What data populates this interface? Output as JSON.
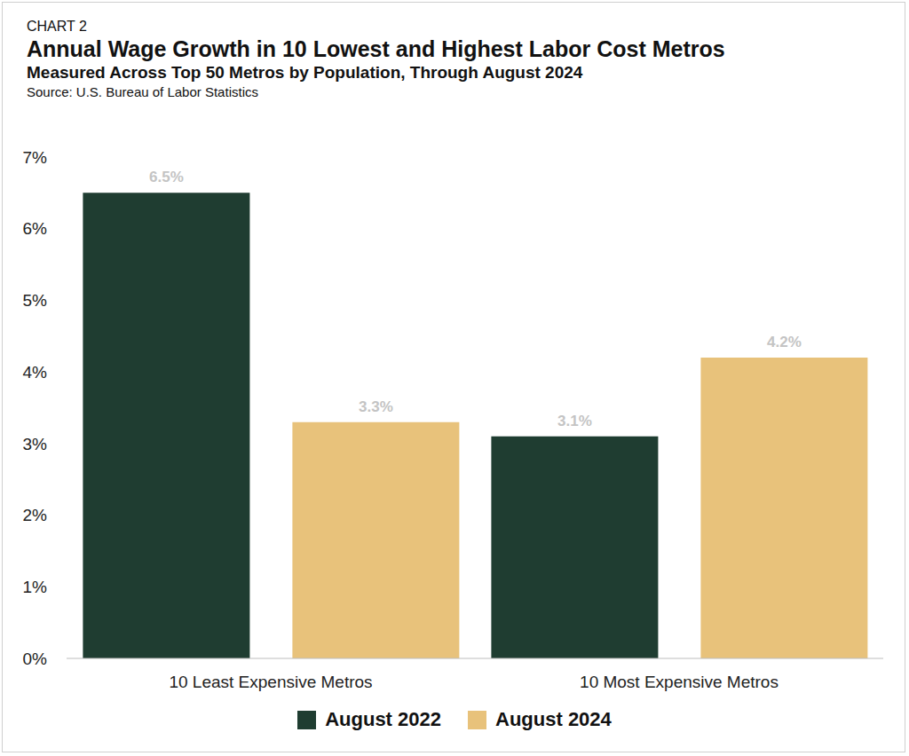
{
  "chart_data": {
    "type": "bar",
    "title": "Annual Wage Growth in 10 Lowest and Highest Labor Cost Metros",
    "subtitle": "Measured Across Top 50 Metros by Population, Through August 2024",
    "annotations": [
      "CHART 2",
      "Source: U.S. Bureau of Labor Statistics"
    ],
    "categories": [
      "10 Least Expensive Metros",
      "10 Most Expensive Metros"
    ],
    "series": [
      {
        "name": "August 2022",
        "color": "#1f3d31",
        "values": [
          6.5,
          3.1
        ],
        "value_labels": [
          "6.5%",
          "3.1%"
        ]
      },
      {
        "name": "August 2024",
        "color": "#e8c27b",
        "values": [
          3.3,
          4.2
        ],
        "value_labels": [
          "3.3%",
          "4.2%"
        ]
      }
    ],
    "ylim": [
      0,
      7
    ],
    "yticks": [
      {
        "value": 0,
        "label": "0%"
      },
      {
        "value": 1,
        "label": "1%"
      },
      {
        "value": 2,
        "label": "2%"
      },
      {
        "value": 3,
        "label": "3%"
      },
      {
        "value": 4,
        "label": "4%"
      },
      {
        "value": 5,
        "label": "5%"
      },
      {
        "value": 6,
        "label": "6%"
      },
      {
        "value": 7,
        "label": "7%"
      }
    ],
    "grid": false,
    "legend": "bottom",
    "data_labels": true
  }
}
